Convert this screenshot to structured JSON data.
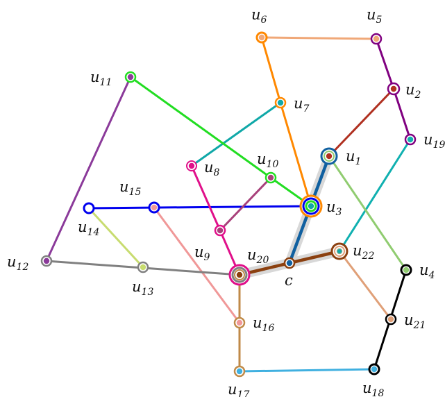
{
  "nodes": [
    {
      "id": "u1",
      "label": "u",
      "sub": "1"
    },
    {
      "id": "u2",
      "label": "u",
      "sub": "2"
    },
    {
      "id": "u3",
      "label": "u",
      "sub": "3"
    },
    {
      "id": "u4",
      "label": "u",
      "sub": "4"
    },
    {
      "id": "u5",
      "label": "u",
      "sub": "5"
    },
    {
      "id": "u6",
      "label": "u",
      "sub": "6"
    },
    {
      "id": "u7",
      "label": "u",
      "sub": "7"
    },
    {
      "id": "u8",
      "label": "u",
      "sub": "8"
    },
    {
      "id": "u9",
      "label": "u",
      "sub": "9"
    },
    {
      "id": "u10",
      "label": "u",
      "sub": "10"
    },
    {
      "id": "u11",
      "label": "u",
      "sub": "11"
    },
    {
      "id": "u12",
      "label": "u",
      "sub": "12"
    },
    {
      "id": "u13",
      "label": "u",
      "sub": "13"
    },
    {
      "id": "u14",
      "label": "u",
      "sub": "14"
    },
    {
      "id": "u15",
      "label": "u",
      "sub": "15"
    },
    {
      "id": "u16",
      "label": "u",
      "sub": "16"
    },
    {
      "id": "u17",
      "label": "u",
      "sub": "17"
    },
    {
      "id": "u18",
      "label": "u",
      "sub": "18"
    },
    {
      "id": "u19",
      "label": "u",
      "sub": "19"
    },
    {
      "id": "u20",
      "label": "u",
      "sub": "20"
    },
    {
      "id": "u21",
      "label": "u",
      "sub": "21"
    },
    {
      "id": "u22",
      "label": "u",
      "sub": "22"
    },
    {
      "id": "c",
      "label": "c",
      "sub": ""
    }
  ],
  "edges": [
    {
      "from": "u6",
      "to": "u5",
      "color": "#f0a878"
    },
    {
      "from": "u5",
      "to": "u2",
      "color": "#800080"
    },
    {
      "from": "u2",
      "to": "u19",
      "color": "#800080"
    },
    {
      "from": "u2",
      "to": "u1",
      "color": "#b03020"
    },
    {
      "from": "u6",
      "to": "u7",
      "color": "#ff8800"
    },
    {
      "from": "u7",
      "to": "u3",
      "color": "#ff8800"
    },
    {
      "from": "u7",
      "to": "u8",
      "color": "#10a8a8"
    },
    {
      "from": "u11",
      "to": "u10",
      "color": "#22dd22"
    },
    {
      "from": "u10",
      "to": "u3",
      "color": "#22dd22"
    },
    {
      "from": "u11",
      "to": "u12",
      "color": "#8b3a9a"
    },
    {
      "from": "u14",
      "to": "u3",
      "color": "#0000ee"
    },
    {
      "from": "u8",
      "to": "u9",
      "color": "#e0108a"
    },
    {
      "from": "u9",
      "to": "u20",
      "color": "#e0108a"
    },
    {
      "from": "u9",
      "to": "u10",
      "color": "#a8407a"
    },
    {
      "from": "u14",
      "to": "u13",
      "color": "#c8dc70"
    },
    {
      "from": "u15",
      "to": "u16",
      "color": "#f09898"
    },
    {
      "from": "u12",
      "to": "u20",
      "color": "#808080"
    },
    {
      "from": "u20",
      "to": "u17",
      "color": "#c08a48"
    },
    {
      "from": "u17",
      "to": "u18",
      "color": "#40b0e0"
    },
    {
      "from": "u18",
      "to": "u4",
      "color": "#000000"
    },
    {
      "from": "u22",
      "to": "u21",
      "color": "#e0a078"
    },
    {
      "from": "u22",
      "to": "u19",
      "color": "#10b0b0"
    },
    {
      "from": "u1",
      "to": "u4",
      "color": "#90cc70"
    },
    {
      "from": "u20",
      "to": "u22",
      "color": "#8b4010",
      "highlight": true
    },
    {
      "from": "u1",
      "to": "c",
      "color": "#1060a0",
      "highlight": true
    }
  ]
}
